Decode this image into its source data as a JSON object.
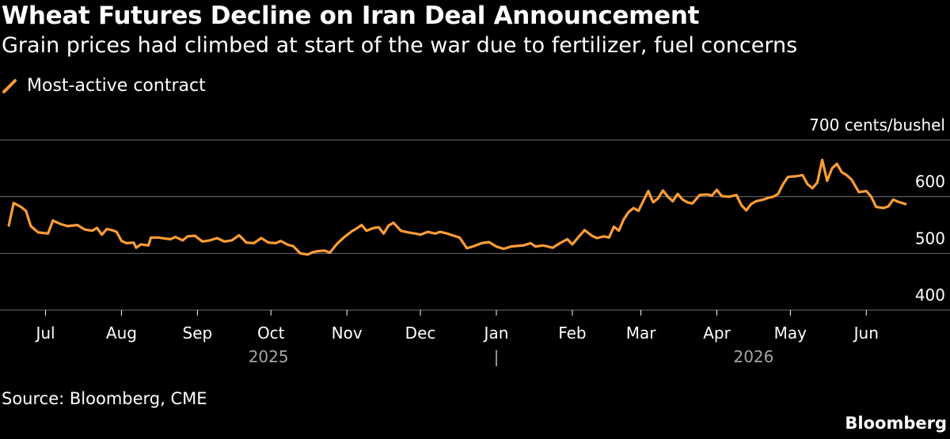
{
  "colors": {
    "line": "#fe9d36",
    "grid": "#6e6e6e",
    "text": "#ffffff",
    "background": "#000000"
  },
  "chart_data": {
    "type": "line",
    "title": "Wheat Futures Decline on Iran Deal Announcement",
    "subtitle": "Grain prices had climbed at start of the war due to fertilizer, fuel concerns",
    "legend": {
      "label": "Most-active contract",
      "position": "top-left"
    },
    "unit_label": "700 cents/bushel",
    "ylim": [
      400,
      700
    ],
    "yticks": [
      {
        "value": 700,
        "label": "700 cents/bushel"
      },
      {
        "value": 600,
        "label": "600"
      },
      {
        "value": 500,
        "label": "500"
      },
      {
        "value": 400,
        "label": "400"
      }
    ],
    "xlim": [
      "2025-06-15",
      "2026-06-19"
    ],
    "xticks": [
      {
        "date": "2025-07-01",
        "label": "Jul"
      },
      {
        "date": "2025-08-01",
        "label": "Aug"
      },
      {
        "date": "2025-09-01",
        "label": "Sep"
      },
      {
        "date": "2025-10-01",
        "label": "Oct"
      },
      {
        "date": "2025-11-01",
        "label": "Nov"
      },
      {
        "date": "2025-12-01",
        "label": "Dec"
      },
      {
        "date": "2026-01-01",
        "label": "Jan"
      },
      {
        "date": "2026-02-01",
        "label": "Feb"
      },
      {
        "date": "2026-03-01",
        "label": "Mar"
      },
      {
        "date": "2026-04-01",
        "label": "Apr"
      },
      {
        "date": "2026-05-01",
        "label": "May"
      },
      {
        "date": "2026-06-01",
        "label": "Jun"
      }
    ],
    "year_labels": [
      {
        "date": "2025-09-30",
        "label": "2025"
      },
      {
        "date": "2026-04-16",
        "label": "2026"
      }
    ],
    "year_separator": {
      "date": "2026-01-01",
      "label": "|"
    },
    "grid": true,
    "series": [
      {
        "name": "Most-active contract",
        "points": [
          [
            "2025-06-16",
            549
          ],
          [
            "2025-06-18",
            589
          ],
          [
            "2025-06-21",
            582
          ],
          [
            "2025-06-23",
            575
          ],
          [
            "2025-06-25",
            548
          ],
          [
            "2025-06-28",
            537
          ],
          [
            "2025-06-30",
            536
          ],
          [
            "2025-07-02",
            535
          ],
          [
            "2025-07-04",
            558
          ],
          [
            "2025-07-07",
            552
          ],
          [
            "2025-07-10",
            548
          ],
          [
            "2025-07-14",
            550
          ],
          [
            "2025-07-17",
            542
          ],
          [
            "2025-07-20",
            540
          ],
          [
            "2025-07-22",
            545
          ],
          [
            "2025-07-24",
            533
          ],
          [
            "2025-07-26",
            543
          ],
          [
            "2025-07-28",
            541
          ],
          [
            "2025-07-30",
            538
          ],
          [
            "2025-08-01",
            522
          ],
          [
            "2025-08-03",
            518
          ],
          [
            "2025-08-06",
            519
          ],
          [
            "2025-08-07",
            510
          ],
          [
            "2025-08-09",
            516
          ],
          [
            "2025-08-12",
            514
          ],
          [
            "2025-08-13",
            528
          ],
          [
            "2025-08-16",
            528
          ],
          [
            "2025-08-19",
            526
          ],
          [
            "2025-08-21",
            525
          ],
          [
            "2025-08-23",
            529
          ],
          [
            "2025-08-26",
            523
          ],
          [
            "2025-08-28",
            530
          ],
          [
            "2025-08-31",
            531
          ],
          [
            "2025-09-03",
            521
          ],
          [
            "2025-09-06",
            523
          ],
          [
            "2025-09-09",
            527
          ],
          [
            "2025-09-12",
            521
          ],
          [
            "2025-09-15",
            523
          ],
          [
            "2025-09-18",
            532
          ],
          [
            "2025-09-21",
            519
          ],
          [
            "2025-09-24",
            518
          ],
          [
            "2025-09-27",
            527
          ],
          [
            "2025-09-30",
            519
          ],
          [
            "2025-10-03",
            518
          ],
          [
            "2025-10-05",
            522
          ],
          [
            "2025-10-08",
            515
          ],
          [
            "2025-10-10",
            513
          ],
          [
            "2025-10-13",
            500
          ],
          [
            "2025-10-16",
            498
          ],
          [
            "2025-10-18",
            502
          ],
          [
            "2025-10-20",
            504
          ],
          [
            "2025-10-23",
            505
          ],
          [
            "2025-10-25",
            501
          ],
          [
            "2025-10-28",
            517
          ],
          [
            "2025-10-31",
            529
          ],
          [
            "2025-11-03",
            539
          ],
          [
            "2025-11-05",
            544
          ],
          [
            "2025-11-07",
            550
          ],
          [
            "2025-11-09",
            540
          ],
          [
            "2025-11-12",
            545
          ],
          [
            "2025-11-14",
            546
          ],
          [
            "2025-11-16",
            535
          ],
          [
            "2025-11-18",
            549
          ],
          [
            "2025-11-20",
            554
          ],
          [
            "2025-11-23",
            540
          ],
          [
            "2025-11-26",
            537
          ],
          [
            "2025-11-29",
            535
          ],
          [
            "2025-12-01",
            533
          ],
          [
            "2025-12-04",
            538
          ],
          [
            "2025-12-07",
            535
          ],
          [
            "2025-12-09",
            538
          ],
          [
            "2025-12-12",
            535
          ],
          [
            "2025-12-14",
            532
          ],
          [
            "2025-12-17",
            528
          ],
          [
            "2025-12-20",
            509
          ],
          [
            "2025-12-23",
            513
          ],
          [
            "2025-12-26",
            518
          ],
          [
            "2025-12-29",
            520
          ],
          [
            "2026-01-01",
            512
          ],
          [
            "2026-01-04",
            508
          ],
          [
            "2026-01-07",
            512
          ],
          [
            "2026-01-09",
            513
          ],
          [
            "2026-01-12",
            514
          ],
          [
            "2026-01-15",
            518
          ],
          [
            "2026-01-17",
            512
          ],
          [
            "2026-01-20",
            514
          ],
          [
            "2026-01-22",
            512
          ],
          [
            "2026-01-24",
            510
          ],
          [
            "2026-01-27",
            518
          ],
          [
            "2026-01-30",
            525
          ],
          [
            "2026-02-01",
            516
          ],
          [
            "2026-02-04",
            531
          ],
          [
            "2026-02-06",
            541
          ],
          [
            "2026-02-09",
            531
          ],
          [
            "2026-02-11",
            527
          ],
          [
            "2026-02-14",
            530
          ],
          [
            "2026-02-16",
            528
          ],
          [
            "2026-02-18",
            547
          ],
          [
            "2026-02-20",
            540
          ],
          [
            "2026-02-22",
            560
          ],
          [
            "2026-02-24",
            573
          ],
          [
            "2026-02-26",
            580
          ],
          [
            "2026-02-28",
            575
          ],
          [
            "2026-03-02",
            593
          ],
          [
            "2026-03-04",
            610
          ],
          [
            "2026-03-06",
            590
          ],
          [
            "2026-03-08",
            597
          ],
          [
            "2026-03-10",
            611
          ],
          [
            "2026-03-12",
            600
          ],
          [
            "2026-03-14",
            592
          ],
          [
            "2026-03-16",
            605
          ],
          [
            "2026-03-18",
            595
          ],
          [
            "2026-03-20",
            590
          ],
          [
            "2026-03-22",
            588
          ],
          [
            "2026-03-25",
            603
          ],
          [
            "2026-03-28",
            604
          ],
          [
            "2026-03-30",
            602
          ],
          [
            "2026-04-01",
            612
          ],
          [
            "2026-04-03",
            601
          ],
          [
            "2026-04-06",
            600
          ],
          [
            "2026-04-09",
            603
          ],
          [
            "2026-04-11",
            585
          ],
          [
            "2026-04-13",
            576
          ],
          [
            "2026-04-15",
            587
          ],
          [
            "2026-04-17",
            592
          ],
          [
            "2026-04-20",
            595
          ],
          [
            "2026-04-22",
            598
          ],
          [
            "2026-04-24",
            600
          ],
          [
            "2026-04-26",
            605
          ],
          [
            "2026-04-28",
            622
          ],
          [
            "2026-04-30",
            635
          ],
          [
            "2026-05-03",
            636
          ],
          [
            "2026-05-06",
            638
          ],
          [
            "2026-05-08",
            622
          ],
          [
            "2026-05-10",
            615
          ],
          [
            "2026-05-12",
            625
          ],
          [
            "2026-05-14",
            665
          ],
          [
            "2026-05-16",
            628
          ],
          [
            "2026-05-18",
            650
          ],
          [
            "2026-05-20",
            658
          ],
          [
            "2026-05-22",
            643
          ],
          [
            "2026-05-24",
            638
          ],
          [
            "2026-05-26",
            630
          ],
          [
            "2026-05-29",
            608
          ],
          [
            "2026-06-01",
            610
          ],
          [
            "2026-06-03",
            600
          ],
          [
            "2026-06-05",
            582
          ],
          [
            "2026-06-08",
            580
          ],
          [
            "2026-06-10",
            583
          ],
          [
            "2026-06-12",
            595
          ],
          [
            "2026-06-14",
            591
          ],
          [
            "2026-06-17",
            587
          ]
        ]
      }
    ]
  },
  "footer": {
    "source": "Source: Bloomberg, CME",
    "logo": "Bloomberg"
  }
}
